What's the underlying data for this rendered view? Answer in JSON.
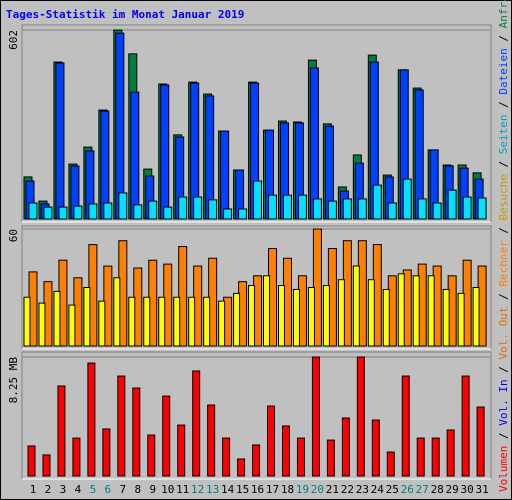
{
  "title": "Tages-Statistik im Monat Januar 2019",
  "categories": [
    "1",
    "2",
    "3",
    "4",
    "5",
    "6",
    "7",
    "8",
    "9",
    "10",
    "11",
    "12",
    "13",
    "14",
    "15",
    "16",
    "17",
    "18",
    "19",
    "20",
    "21",
    "22",
    "23",
    "24",
    "25",
    "26",
    "27",
    "28",
    "29",
    "30",
    "31"
  ],
  "category_colors": [
    "#000000",
    "#000000",
    "#000000",
    "#000000",
    "#008080",
    "#008080",
    "#000000",
    "#000000",
    "#000000",
    "#000000",
    "#000000",
    "#008080",
    "#008080",
    "#000000",
    "#000000",
    "#000000",
    "#000000",
    "#000000",
    "#008080",
    "#008080",
    "#000000",
    "#000000",
    "#000000",
    "#000000",
    "#000000",
    "#008080",
    "#008080",
    "#000000",
    "#000000",
    "#000000",
    "#000000"
  ],
  "extra_legend": [
    {
      "name": "Vol. Out",
      "color": "#e07000"
    },
    {
      "name": "Vol. In",
      "color": "#0000ff"
    }
  ],
  "chart_data": [
    {
      "type": "bar",
      "ylim": [
        0,
        602
      ],
      "yticks": [
        602
      ],
      "series": [
        {
          "name": "Anfragen",
          "color": "#008040",
          "values": [
            134,
            57,
            500,
            175,
            229,
            347,
            602,
            526,
            159,
            430,
            268,
            436,
            398,
            280,
            156,
            436,
            283,
            312,
            309,
            506,
            303,
            102,
            204,
            522,
            140,
            475,
            417,
            220,
            172,
            172,
            147
          ]
        },
        {
          "name": "Dateien",
          "color": "#0040ff",
          "values": [
            121,
            48,
            497,
            169,
            217,
            344,
            592,
            404,
            137,
            427,
            261,
            433,
            392,
            280,
            156,
            433,
            283,
            306,
            306,
            481,
            296,
            89,
            178,
            500,
            134,
            475,
            411,
            220,
            169,
            162,
            127
          ]
        },
        {
          "name": "Seiten",
          "color": "#00e0ff",
          "values": [
            51,
            38,
            38,
            41,
            48,
            51,
            83,
            45,
            57,
            38,
            70,
            70,
            61,
            32,
            32,
            121,
            76,
            76,
            76,
            64,
            57,
            64,
            64,
            108,
            51,
            127,
            64,
            51,
            92,
            70,
            67
          ]
        }
      ]
    },
    {
      "type": "bar",
      "ylim": [
        0,
        60
      ],
      "yticks": [
        60
      ],
      "series": [
        {
          "name": "Besuche",
          "color": "#ffff00",
          "values": [
            25,
            22,
            28,
            21,
            30,
            23,
            35,
            25,
            25,
            25,
            25,
            25,
            25,
            23,
            27,
            31,
            36,
            31,
            29,
            30,
            31,
            34,
            41,
            34,
            29,
            37,
            36,
            36,
            29,
            27,
            30
          ]
        },
        {
          "name": "Rechner",
          "color": "#ff8000",
          "values": [
            38,
            33,
            44,
            35,
            52,
            41,
            54,
            40,
            44,
            42,
            51,
            41,
            45,
            25,
            33,
            36,
            50,
            45,
            36,
            60,
            50,
            54,
            54,
            52,
            36,
            39,
            42,
            41,
            36,
            44,
            41
          ]
        }
      ]
    },
    {
      "type": "bar",
      "ylim": [
        0,
        8.25
      ],
      "yticks": [
        {
          "value": 8.25,
          "label": "8.25 MB"
        }
      ],
      "series": [
        {
          "name": "Volumen",
          "color": "#ff0000",
          "values": [
            2.08,
            1.46,
            6.24,
            2.63,
            7.83,
            3.26,
            6.93,
            6.1,
            2.84,
            5.54,
            3.53,
            7.28,
            4.92,
            2.63,
            1.18,
            2.15,
            4.85,
            3.47,
            2.63,
            8.25,
            2.49,
            4.02,
            8.25,
            3.88,
            1.66,
            6.93,
            2.63,
            2.63,
            3.19,
            6.93,
            4.78
          ]
        }
      ]
    }
  ]
}
